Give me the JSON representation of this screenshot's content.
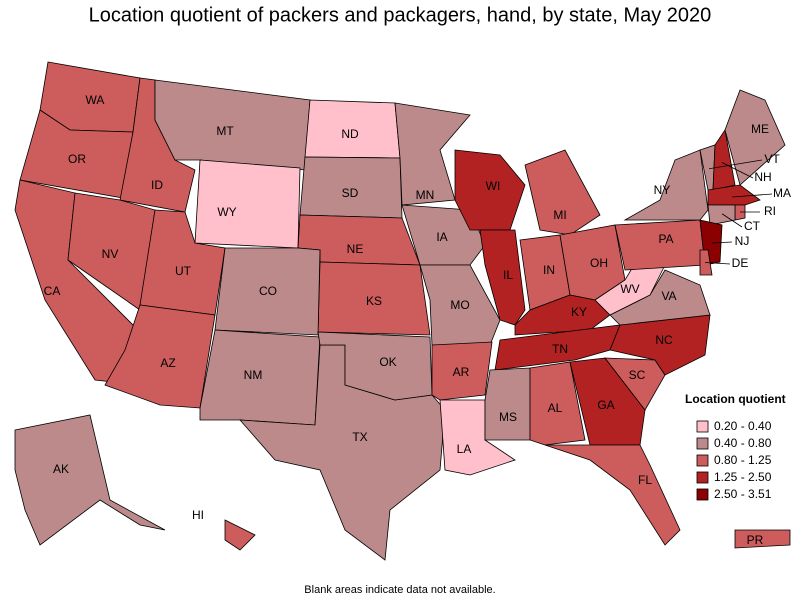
{
  "title": "Location quotient of packers and packagers, hand, by state, May 2020",
  "states": [
    {
      "abbr": "WA",
      "color": "#cd5c5c"
    },
    {
      "abbr": "OR",
      "color": "#cd5c5c"
    },
    {
      "abbr": "CA",
      "color": "#cd5c5c"
    },
    {
      "abbr": "ID",
      "color": "#cd5c5c"
    },
    {
      "abbr": "NV",
      "color": "#cd5c5c"
    },
    {
      "abbr": "UT",
      "color": "#cd5c5c"
    },
    {
      "abbr": "AZ",
      "color": "#cd5c5c"
    },
    {
      "abbr": "MT",
      "color": "#bc8a8a"
    },
    {
      "abbr": "WY",
      "color": "#ffc0cb"
    },
    {
      "abbr": "ND",
      "color": "#ffc0cb"
    },
    {
      "abbr": "SD",
      "color": "#bc8a8a"
    },
    {
      "abbr": "NE",
      "color": "#cd5c5c"
    },
    {
      "abbr": "KS",
      "color": "#cd5c5c"
    },
    {
      "abbr": "CO",
      "color": "#bc8a8a"
    },
    {
      "abbr": "NM",
      "color": "#bc8a8a"
    },
    {
      "abbr": "TX",
      "color": "#bc8a8a"
    },
    {
      "abbr": "OK",
      "color": "#bc8a8a"
    },
    {
      "abbr": "MN",
      "color": "#bc8a8a"
    },
    {
      "abbr": "IA",
      "color": "#bc8a8a"
    },
    {
      "abbr": "MO",
      "color": "#bc8a8a"
    },
    {
      "abbr": "AR",
      "color": "#cd5c5c"
    },
    {
      "abbr": "LA",
      "color": "#ffc0cb"
    },
    {
      "abbr": "WI",
      "color": "#b22222"
    },
    {
      "abbr": "IL",
      "color": "#b22222"
    },
    {
      "abbr": "MI",
      "color": "#cd5c5c"
    },
    {
      "abbr": "IN",
      "color": "#cd5c5c"
    },
    {
      "abbr": "OH",
      "color": "#cd5c5c"
    },
    {
      "abbr": "KY",
      "color": "#b22222"
    },
    {
      "abbr": "TN",
      "color": "#b22222"
    },
    {
      "abbr": "MS",
      "color": "#bc8a8a"
    },
    {
      "abbr": "AL",
      "color": "#cd5c5c"
    },
    {
      "abbr": "GA",
      "color": "#b22222"
    },
    {
      "abbr": "FL",
      "color": "#cd5c5c"
    },
    {
      "abbr": "SC",
      "color": "#cd5c5c"
    },
    {
      "abbr": "NC",
      "color": "#b22222"
    },
    {
      "abbr": "VA",
      "color": "#bc8a8a"
    },
    {
      "abbr": "WV",
      "color": "#ffc0cb"
    },
    {
      "abbr": "PA",
      "color": "#cd5c5c"
    },
    {
      "abbr": "NY",
      "color": "#bc8a8a"
    },
    {
      "abbr": "VT",
      "color": "#bc8a8a"
    },
    {
      "abbr": "NH",
      "color": "#b22222"
    },
    {
      "abbr": "ME",
      "color": "#bc8a8a"
    },
    {
      "abbr": "MA",
      "color": "#b22222"
    },
    {
      "abbr": "RI",
      "color": "#cd5c5c"
    },
    {
      "abbr": "CT",
      "color": "#bc8a8a"
    },
    {
      "abbr": "NJ",
      "color": "#8b0000"
    },
    {
      "abbr": "DE",
      "color": "#cd5c5c"
    },
    {
      "abbr": "AK",
      "color": "#bc8a8a"
    },
    {
      "abbr": "HI",
      "color": "#cd5c5c"
    },
    {
      "abbr": "PR",
      "color": "#cd5c5c"
    }
  ],
  "legend": {
    "title": "Location quotient",
    "entries": [
      {
        "label": "0.20 - 0.40",
        "color": "#ffc0cb"
      },
      {
        "label": "0.40 - 0.80",
        "color": "#bc8a8a"
      },
      {
        "label": "0.80 - 1.25",
        "color": "#cd5c5c"
      },
      {
        "label": "1.25 - 2.50",
        "color": "#b22222"
      },
      {
        "label": "2.50 - 3.51",
        "color": "#8b0000"
      }
    ]
  },
  "note": "Blank areas indicate data not available."
}
